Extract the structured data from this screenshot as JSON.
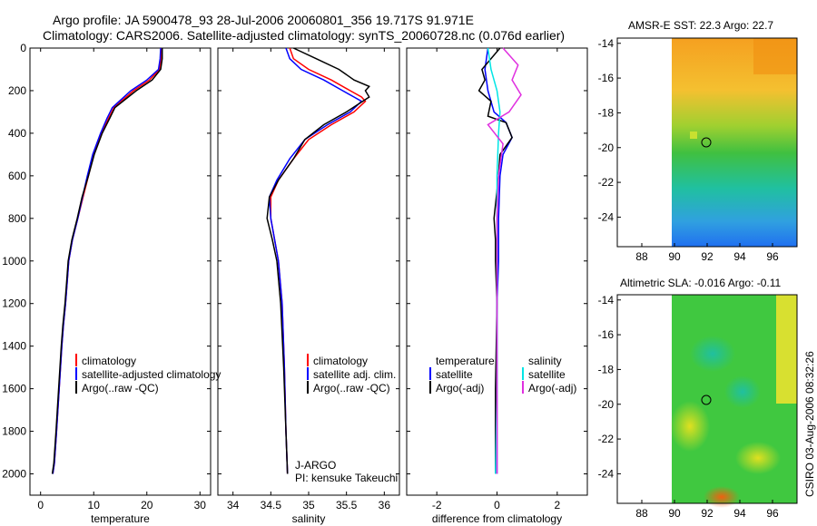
{
  "header": {
    "line1": "Argo profile: JA 5900478_93 28-Jul-2006 20060801_356 19.717S 91.971E",
    "line2": "Climatology: CARS2006. Satellite-adjusted climatology: synTS_20060728.nc (0.076d earlier)"
  },
  "footer": {
    "stamp": "CSIRO 03-Aug-2006 08:32:26"
  },
  "colors": {
    "climatology": "#ff0000",
    "satellite": "#0000ff",
    "argo": "#000000",
    "satellite_sal": "#00e5e5",
    "argo_sal": "#e030e0"
  },
  "chart_data": [
    {
      "id": "temperature",
      "type": "line",
      "xlabel": "temperature",
      "xlim": [
        -2,
        32
      ],
      "ylim": [
        0,
        2100
      ],
      "xticks": [
        0,
        10,
        20,
        30
      ],
      "yticks": [
        0,
        200,
        400,
        600,
        800,
        1000,
        1200,
        1400,
        1600,
        1800,
        2000
      ],
      "legend": [
        "climatology",
        "satellite-adjusted climatology",
        "Argo(..raw -QC)"
      ],
      "series": [
        {
          "name": "climatology",
          "color": "#ff0000",
          "x": [
            22.8,
            22.7,
            22.4,
            20.5,
            17.5,
            13.8,
            12.8,
            11.5,
            10.0,
            9.0,
            8.0,
            7.0,
            6.0,
            5.3,
            5.0,
            4.7,
            4.3,
            4.0,
            3.5,
            3.0,
            2.6,
            2.3
          ],
          "y": [
            0,
            50,
            100,
            150,
            200,
            280,
            330,
            400,
            500,
            600,
            700,
            800,
            900,
            1000,
            1100,
            1200,
            1300,
            1400,
            1600,
            1800,
            1950,
            2000
          ]
        },
        {
          "name": "satellite",
          "color": "#0000ff",
          "x": [
            22.6,
            22.5,
            22.2,
            20.0,
            17.0,
            13.5,
            12.5,
            11.3,
            9.8,
            8.8,
            7.9,
            7.0,
            6.0,
            5.3,
            5.0,
            4.7,
            4.3,
            4.0,
            3.5,
            3.0,
            2.6,
            2.3
          ],
          "y": [
            0,
            50,
            100,
            150,
            200,
            280,
            330,
            400,
            500,
            600,
            700,
            800,
            900,
            1000,
            1100,
            1200,
            1300,
            1400,
            1600,
            1800,
            1950,
            2000
          ]
        },
        {
          "name": "argo",
          "color": "#000000",
          "x": [
            22.9,
            22.9,
            22.6,
            21.0,
            18.0,
            14.0,
            13.0,
            11.6,
            10.1,
            9.0,
            7.8,
            6.9,
            5.9,
            5.2,
            4.9,
            4.6,
            4.2,
            3.9,
            3.4,
            2.9,
            2.5,
            2.2
          ],
          "y": [
            0,
            50,
            100,
            150,
            200,
            280,
            330,
            400,
            500,
            600,
            700,
            800,
            900,
            1000,
            1100,
            1200,
            1300,
            1400,
            1600,
            1800,
            1950,
            2000
          ]
        }
      ]
    },
    {
      "id": "salinity",
      "type": "line",
      "xlabel": "salinity",
      "xlim": [
        33.8,
        36.2
      ],
      "ylim": [
        0,
        2100
      ],
      "xticks": [
        34,
        34.5,
        35,
        35.5,
        36
      ],
      "xticklabels": [
        "34",
        "34.5",
        "35",
        "35.5",
        "36"
      ],
      "legend": [
        "climatology",
        "satellite adj. clim.",
        "Argo(..raw -QC)"
      ],
      "annotation": [
        "J-ARGO",
        "PI: kensuke Takeuchi"
      ],
      "series": [
        {
          "name": "climatology",
          "color": "#ff0000",
          "x": [
            34.75,
            34.8,
            35.0,
            35.3,
            35.55,
            35.7,
            35.75,
            35.6,
            35.3,
            35.0,
            34.8,
            34.6,
            34.5,
            34.5,
            34.55,
            34.6,
            34.65,
            34.68,
            34.7,
            34.72
          ],
          "y": [
            0,
            50,
            100,
            150,
            200,
            230,
            250,
            300,
            360,
            430,
            520,
            620,
            700,
            800,
            900,
            1000,
            1200,
            1500,
            1800,
            2000
          ]
        },
        {
          "name": "satellite",
          "color": "#0000ff",
          "x": [
            34.7,
            34.75,
            34.9,
            35.2,
            35.45,
            35.6,
            35.7,
            35.55,
            35.25,
            34.95,
            34.75,
            34.58,
            34.48,
            34.5,
            34.55,
            34.6,
            34.65,
            34.68,
            34.7,
            34.72
          ],
          "y": [
            0,
            50,
            100,
            150,
            200,
            230,
            250,
            300,
            360,
            430,
            520,
            620,
            700,
            800,
            900,
            1000,
            1200,
            1500,
            1800,
            2000
          ]
        },
        {
          "name": "argo",
          "color": "#000000",
          "x": [
            34.8,
            35.1,
            35.4,
            35.6,
            35.8,
            35.75,
            35.8,
            35.5,
            35.2,
            34.95,
            34.8,
            34.6,
            34.48,
            34.45,
            34.52,
            34.58,
            34.63,
            34.67,
            34.7,
            34.72
          ],
          "y": [
            0,
            50,
            100,
            150,
            180,
            200,
            230,
            300,
            360,
            430,
            520,
            620,
            700,
            800,
            900,
            1000,
            1200,
            1500,
            1800,
            2000
          ]
        }
      ]
    },
    {
      "id": "difference",
      "type": "line",
      "xlabel": "difference from climatology",
      "xlim": [
        -3,
        3
      ],
      "ylim": [
        0,
        2100
      ],
      "xticks": [
        -2,
        0,
        2
      ],
      "legend_left_title": "temperature",
      "legend_right_title": "salinity",
      "legend_left": [
        "satellite",
        "Argo(-adj)"
      ],
      "legend_right": [
        "satellite",
        "Argo(-adj)"
      ],
      "series": [
        {
          "name": "temp-satellite",
          "color": "#0000ff",
          "x": [
            -0.3,
            -0.4,
            -0.3,
            -0.1,
            0.3,
            0.5,
            0.2,
            0.1,
            0.05,
            0.05,
            0.0,
            0.0,
            0.0,
            0.0
          ],
          "y": [
            0,
            100,
            200,
            300,
            350,
            420,
            500,
            600,
            800,
            1000,
            1200,
            1500,
            1800,
            2000
          ]
        },
        {
          "name": "temp-argo",
          "color": "#000000",
          "x": [
            0.1,
            -0.5,
            -0.4,
            -0.6,
            -0.2,
            -0.3,
            0.3,
            0.5,
            0.1,
            0.05,
            -0.1,
            -0.05,
            -0.05,
            0.0,
            -0.05,
            -0.05
          ],
          "y": [
            0,
            100,
            150,
            200,
            250,
            320,
            350,
            420,
            500,
            600,
            800,
            900,
            1000,
            1200,
            1600,
            2000
          ]
        },
        {
          "name": "sal-satellite",
          "color": "#00e5e5",
          "x": [
            -0.3,
            -0.2,
            0.0,
            0.1,
            0.05,
            0.0,
            0.0,
            0.0,
            0.0,
            -0.05
          ],
          "y": [
            0,
            100,
            200,
            300,
            400,
            600,
            800,
            1200,
            1600,
            2000
          ]
        },
        {
          "name": "sal-argo",
          "color": "#e030e0",
          "x": [
            0.2,
            0.7,
            0.5,
            0.8,
            0.4,
            -0.3,
            0.2,
            0.05,
            0.0,
            0.0,
            0.0,
            0.0
          ],
          "y": [
            0,
            80,
            150,
            220,
            300,
            360,
            450,
            600,
            800,
            1200,
            1600,
            2000
          ]
        }
      ]
    },
    {
      "id": "sst_map",
      "type": "heatmap",
      "title": "AMSR-E SST: 22.3 Argo: 22.7",
      "xticks": [
        88,
        90,
        92,
        94,
        96
      ],
      "yticks": [
        -14,
        -16,
        -18,
        -20,
        -22,
        -24
      ],
      "xlim": [
        86.5,
        97.5
      ],
      "ylim": [
        -25.7,
        -13.7
      ],
      "data_xlim": [
        90,
        97.5
      ],
      "marker": [
        92,
        -19.7
      ]
    },
    {
      "id": "sla_map",
      "type": "heatmap",
      "title": "Altimetric SLA: -0.016 Argo: -0.11",
      "xticks": [
        88,
        90,
        92,
        94,
        96
      ],
      "yticks": [
        -14,
        -16,
        -18,
        -20,
        -22,
        -24
      ],
      "xlim": [
        86.5,
        97.5
      ],
      "ylim": [
        -25.7,
        -13.7
      ],
      "data_xlim": [
        90,
        97.5
      ],
      "marker": [
        92,
        -19.7
      ]
    }
  ]
}
